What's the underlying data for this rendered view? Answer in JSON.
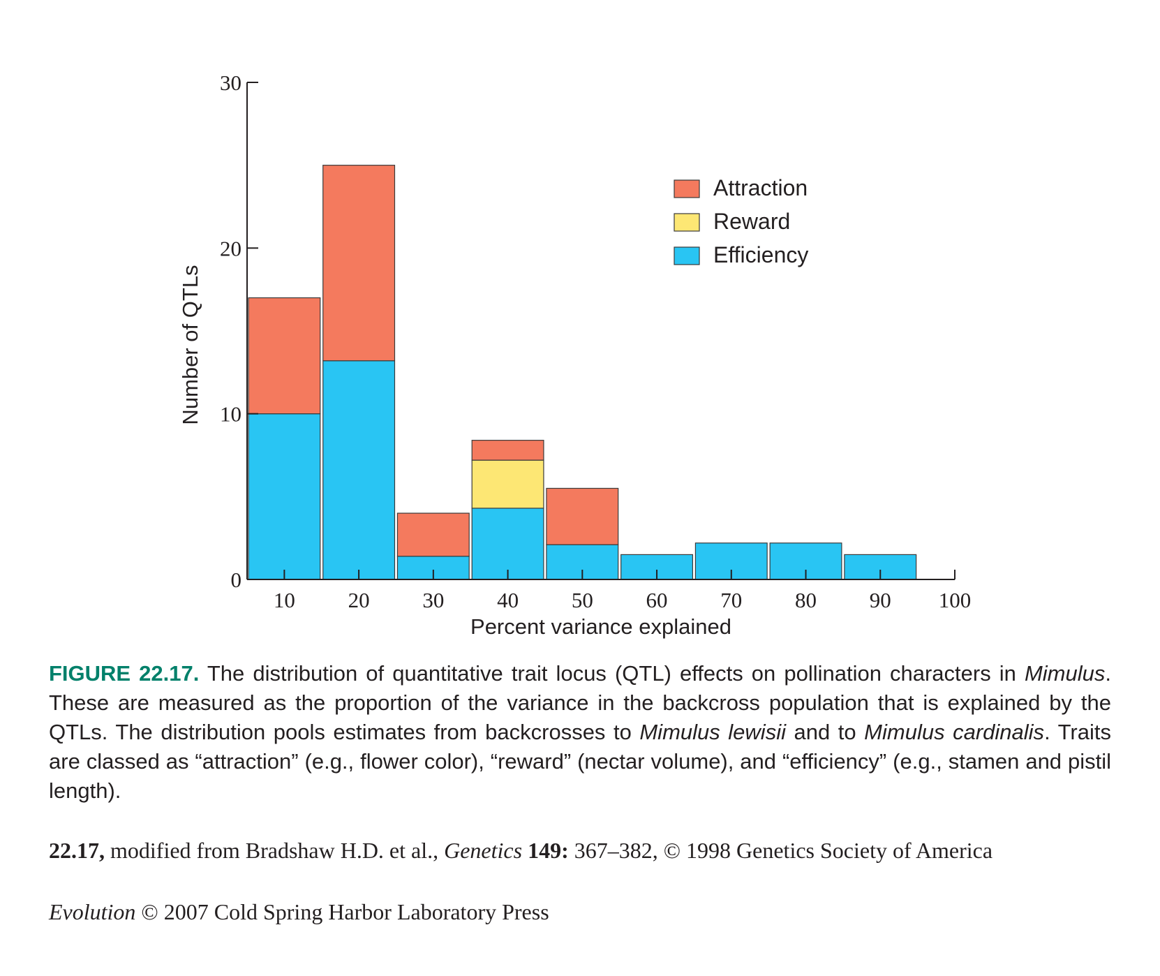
{
  "chart_data": {
    "type": "bar",
    "stacked": true,
    "xlabel": "Percent variance explained",
    "ylabel": "Number of QTLs",
    "ylim": [
      0,
      30
    ],
    "xlim": [
      5,
      100
    ],
    "yticks": [
      0,
      10,
      20,
      30
    ],
    "xticks": [
      10,
      20,
      30,
      40,
      50,
      60,
      70,
      80,
      90,
      100
    ],
    "bin_width": 10,
    "bin_centers": [
      10,
      20,
      30,
      40,
      50,
      60,
      70,
      80,
      90
    ],
    "legend_position": "top-right",
    "series": [
      {
        "name": "Efficiency",
        "color": "#29c5f3",
        "values": [
          10,
          13.2,
          1.4,
          4.3,
          2.1,
          1.5,
          2.2,
          2.2,
          1.5
        ]
      },
      {
        "name": "Reward",
        "color": "#fde774",
        "values": [
          0,
          0,
          0,
          2.9,
          0,
          0,
          0,
          0,
          0
        ]
      },
      {
        "name": "Attraction",
        "color": "#f47a5e",
        "values": [
          7,
          11.8,
          2.6,
          1.2,
          3.4,
          0,
          0,
          0,
          0
        ]
      }
    ],
    "legend_order": [
      "Attraction",
      "Reward",
      "Efficiency"
    ]
  },
  "caption": {
    "label": "FIGURE 22.17.",
    "part1": " The distribution of quantitative trait locus (QTL) effects on pollination characters in ",
    "italic1": "Mimulus",
    "part2": ". These are measured as the proportion of the variance in the backcross population that is explained by the QTLs. The distribution pools estimates from backcrosses to ",
    "italic2": "Mimulus lewisii",
    "part3": " and to ",
    "italic3": "Mimulus cardinalis",
    "part4": ". Traits are classed as “attraction” (e.g., flower color), “reward” (nectar volume), and “efficiency” (e.g., stamen and pistil length)."
  },
  "credit": {
    "label": "22.17,",
    "text1": " modified from Bradshaw H.D. et al., ",
    "journal": "Genetics",
    "volume": " 149:",
    "text2": " 367–382, © 1998 Genetics Society of America"
  },
  "publisher": {
    "book": "Evolution",
    "text": " © 2007 Cold Spring Harbor Laboratory Press"
  }
}
